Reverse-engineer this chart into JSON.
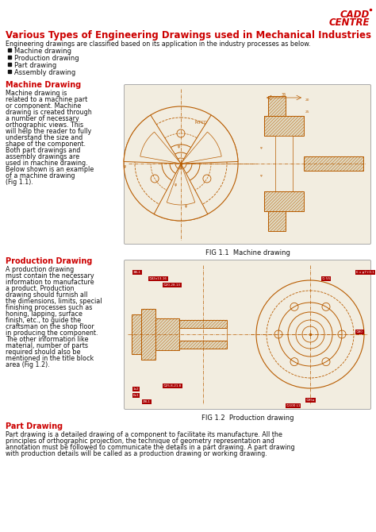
{
  "title": "Various Types of Engineering Drawings used in Mechanical Industries",
  "subtitle": "Engineering drawings are classified based on its application in the industry processes as below.",
  "bullet_items": [
    "Machine drawing",
    "Production drawing",
    "Part drawing",
    "Assembly drawing"
  ],
  "section1_heading": "Machine Drawing",
  "section1_body_lines": [
    "Machine drawing is",
    "related to a machine part",
    "or component. Machine",
    "drawing is created through",
    "a number of necessary",
    "orthographic views. This",
    "will help the reader to fully",
    "understand the size and",
    "shape of the component.",
    "Both part drawings and",
    "assembly drawings are",
    "used in machine drawing.",
    "Below shown is an example",
    "of a machine drawing",
    "(Fig 1.1)."
  ],
  "fig1_caption": "FIG 1.1  Machine drawing",
  "section2_heading": "Production Drawing",
  "section2_body_lines": [
    "A production drawing",
    "must contain the necessary",
    "information to manufacture",
    "a product. Production",
    "drawing should furnish all",
    "the dimensions, limits, special",
    "finishing processes such as",
    "honing, lapping, surface",
    "finish, etc., to guide the",
    "craftsman on the shop floor",
    "in producing the component.",
    "The other information like",
    "material, number of parts",
    "required should also be",
    "mentioned in the title block",
    "area (Fig 1.2)."
  ],
  "fig2_caption": "FIG 1.2  Production drawing",
  "section3_heading": "Part Drawing",
  "section3_body": "Part drawing is a detailed drawing of a component to facilitate its manufacture. All the principles of orthographic projection, the technique of geometry representation and annotation must be followed to communicate the details in a part drawing. A part drawing with production details will be called as a production drawing or working drawing.",
  "bg_color": "#ffffff",
  "title_color": "#cc0000",
  "heading_color": "#cc0000",
  "body_color": "#111111",
  "logo_color": "#cc0000",
  "draw_color": "#b85c00",
  "draw_bg": "#f2ede0",
  "hatch_color": "#b85c00",
  "dim_box_color": "#aa0000"
}
